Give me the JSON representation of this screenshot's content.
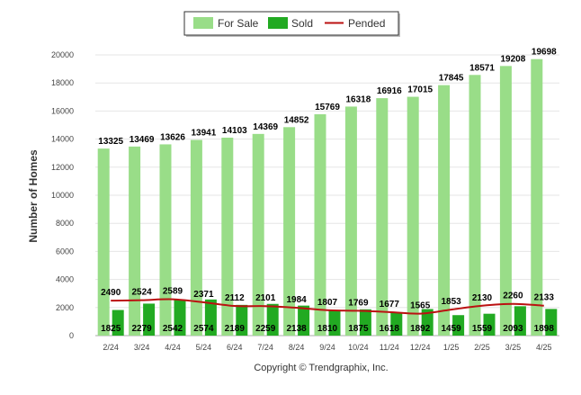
{
  "chart_data": {
    "type": "bar",
    "title": "",
    "xlabel": "",
    "ylabel": "Number of Homes",
    "ylim": [
      0,
      20000
    ],
    "ytick_step": 2000,
    "grid": true,
    "legend_position": "top-center",
    "categories": [
      "2/24",
      "3/24",
      "4/24",
      "5/24",
      "6/24",
      "7/24",
      "8/24",
      "9/24",
      "10/24",
      "11/24",
      "12/24",
      "1/25",
      "2/25",
      "3/25",
      "4/25"
    ],
    "series": [
      {
        "name": "For Sale",
        "kind": "bar",
        "color": "#99dd88",
        "values": [
          13325,
          13469,
          13626,
          13941,
          14103,
          14369,
          14852,
          15769,
          16318,
          16916,
          17015,
          17845,
          18571,
          19208,
          19698
        ]
      },
      {
        "name": "Sold",
        "kind": "bar",
        "color": "#22aa22",
        "values": [
          1825,
          2279,
          2542,
          2574,
          2189,
          2259,
          2138,
          1810,
          1875,
          1618,
          1892,
          1459,
          1559,
          2093,
          1898
        ]
      },
      {
        "name": "Pended",
        "kind": "line",
        "color": "#bb1111",
        "values": [
          2490,
          2524,
          2589,
          2371,
          2112,
          2101,
          1984,
          1807,
          1769,
          1677,
          1565,
          1853,
          2130,
          2260,
          2133
        ]
      }
    ]
  },
  "credit": "Copyright © Trendgraphix, Inc."
}
